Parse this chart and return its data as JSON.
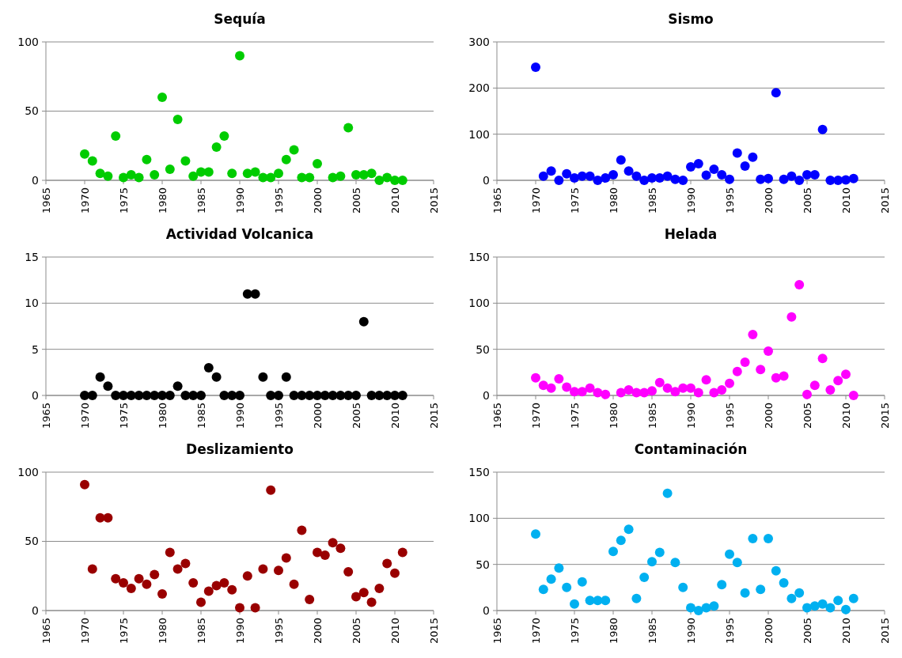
{
  "chart_data": [
    {
      "type": "scatter",
      "title": "Sequía",
      "marker": "circle",
      "grid": "y",
      "xlim": [
        1965,
        2015
      ],
      "xticks": [
        1965,
        1970,
        1975,
        1980,
        1985,
        1990,
        1995,
        2000,
        2005,
        2010,
        2015
      ],
      "ylim": [
        0,
        100
      ],
      "yticks": [
        0,
        50,
        100
      ],
      "series": [
        {
          "color": "#00cc00",
          "x": [
            1970,
            1971,
            1972,
            1973,
            1974,
            1975,
            1976,
            1977,
            1978,
            1979,
            1980,
            1981,
            1982,
            1983,
            1984,
            1985,
            1986,
            1987,
            1988,
            1989,
            1990,
            1991,
            1992,
            1993,
            1994,
            1995,
            1996,
            1997,
            1998,
            1999,
            2000,
            2002,
            2003,
            2004,
            2005,
            2006,
            2007,
            2008,
            2009,
            2010,
            2011
          ],
          "values": [
            19,
            14,
            5,
            3,
            32,
            2,
            4,
            2,
            15,
            4,
            60,
            8,
            44,
            14,
            3,
            6,
            6,
            24,
            32,
            5,
            90,
            5,
            6,
            2,
            2,
            5,
            15,
            22,
            2,
            2,
            12,
            2,
            3,
            38,
            4,
            4,
            5,
            0,
            2,
            0,
            0
          ]
        }
      ]
    },
    {
      "type": "scatter",
      "title": "Sismo",
      "marker": "circle",
      "grid": "y",
      "xlim": [
        1965,
        2015
      ],
      "xticks": [
        1965,
        1970,
        1975,
        1980,
        1985,
        1990,
        1995,
        2000,
        2005,
        2010,
        2015
      ],
      "ylim": [
        0,
        300
      ],
      "yticks": [
        0,
        100,
        200,
        300
      ],
      "series": [
        {
          "color": "#0000ff",
          "x": [
            1970,
            1971,
            1972,
            1973,
            1974,
            1975,
            1976,
            1977,
            1978,
            1979,
            1980,
            1981,
            1982,
            1983,
            1984,
            1985,
            1986,
            1987,
            1988,
            1989,
            1990,
            1991,
            1992,
            1993,
            1994,
            1995,
            1996,
            1997,
            1998,
            1999,
            2000,
            2001,
            2002,
            2003,
            2004,
            2005,
            2006,
            2007,
            2008,
            2009,
            2010,
            2011
          ],
          "values": [
            245,
            9,
            20,
            0,
            14,
            5,
            9,
            9,
            0,
            5,
            12,
            44,
            20,
            9,
            0,
            5,
            5,
            9,
            2,
            0,
            29,
            36,
            11,
            24,
            12,
            2,
            59,
            31,
            50,
            2,
            4,
            190,
            2,
            9,
            0,
            12,
            12,
            110,
            0,
            0,
            1,
            4
          ]
        }
      ]
    },
    {
      "type": "scatter",
      "title": "Actividad Volcanica",
      "marker": "circle",
      "grid": "y",
      "xlim": [
        1965,
        2015
      ],
      "xticks": [
        1965,
        1970,
        1975,
        1980,
        1985,
        1990,
        1995,
        2000,
        2005,
        2010,
        2015
      ],
      "ylim": [
        0,
        15
      ],
      "yticks": [
        0,
        5,
        10,
        15
      ],
      "series": [
        {
          "color": "#000000",
          "x": [
            1970,
            1971,
            1972,
            1973,
            1974,
            1975,
            1976,
            1977,
            1978,
            1979,
            1980,
            1981,
            1982,
            1983,
            1984,
            1985,
            1986,
            1987,
            1988,
            1989,
            1990,
            1991,
            1992,
            1993,
            1994,
            1995,
            1996,
            1997,
            1998,
            1999,
            2000,
            2001,
            2002,
            2003,
            2004,
            2005,
            2006,
            2007,
            2008,
            2009,
            2010,
            2011
          ],
          "values": [
            0,
            0,
            2,
            1,
            0,
            0,
            0,
            0,
            0,
            0,
            0,
            0,
            1,
            0,
            0,
            0,
            3,
            2,
            0,
            0,
            0,
            11,
            11,
            2,
            0,
            0,
            2,
            0,
            0,
            0,
            0,
            0,
            0,
            0,
            0,
            0,
            8,
            0,
            0,
            0,
            0,
            0
          ]
        }
      ]
    },
    {
      "type": "scatter",
      "title": "Helada",
      "marker": "circle",
      "grid": "y",
      "xlim": [
        1965,
        2015
      ],
      "xticks": [
        1965,
        1970,
        1975,
        1980,
        1985,
        1990,
        1995,
        2000,
        2005,
        2010,
        2015
      ],
      "ylim": [
        0,
        150
      ],
      "yticks": [
        0,
        50,
        100,
        150
      ],
      "series": [
        {
          "color": "#ff00ff",
          "x": [
            1970,
            1971,
            1972,
            1973,
            1974,
            1975,
            1976,
            1977,
            1978,
            1979,
            1981,
            1982,
            1983,
            1984,
            1985,
            1986,
            1987,
            1988,
            1989,
            1990,
            1991,
            1992,
            1993,
            1994,
            1995,
            1996,
            1997,
            1998,
            1999,
            2000,
            2001,
            2002,
            2003,
            2004,
            2005,
            2006,
            2007,
            2008,
            2009,
            2010,
            2011
          ],
          "values": [
            19,
            11,
            8,
            18,
            9,
            4,
            4,
            8,
            3,
            1,
            3,
            6,
            3,
            3,
            5,
            14,
            8,
            4,
            8,
            8,
            3,
            17,
            3,
            6,
            13,
            26,
            36,
            66,
            28,
            48,
            19,
            21,
            85,
            120,
            1,
            11,
            40,
            6,
            16,
            23,
            0
          ]
        }
      ]
    },
    {
      "type": "scatter",
      "title": "Deslizamiento",
      "marker": "circle",
      "grid": "y",
      "xlim": [
        1965,
        2015
      ],
      "xticks": [
        1965,
        1970,
        1975,
        1980,
        1985,
        1990,
        1995,
        2000,
        2005,
        2010,
        2015
      ],
      "ylim": [
        0,
        100
      ],
      "yticks": [
        0,
        50,
        100
      ],
      "series": [
        {
          "color": "#990000",
          "x": [
            1970,
            1971,
            1972,
            1973,
            1974,
            1975,
            1976,
            1977,
            1978,
            1979,
            1980,
            1981,
            1982,
            1983,
            1984,
            1985,
            1986,
            1987,
            1988,
            1989,
            1990,
            1991,
            1992,
            1993,
            1994,
            1995,
            1996,
            1997,
            1998,
            1999,
            2000,
            2001,
            2002,
            2003,
            2004,
            2005,
            2006,
            2007,
            2008,
            2009,
            2010,
            2011
          ],
          "values": [
            91,
            30,
            67,
            67,
            23,
            20,
            16,
            23,
            19,
            26,
            12,
            42,
            30,
            34,
            20,
            6,
            14,
            18,
            20,
            15,
            2,
            25,
            2,
            30,
            87,
            29,
            38,
            19,
            58,
            8,
            42,
            40,
            49,
            45,
            28,
            10,
            13,
            6,
            16,
            34,
            27,
            42
          ]
        }
      ]
    },
    {
      "type": "scatter",
      "title": "Contaminación",
      "marker": "circle",
      "grid": "y",
      "xlim": [
        1965,
        2015
      ],
      "xticks": [
        1965,
        1970,
        1975,
        1980,
        1985,
        1990,
        1995,
        2000,
        2005,
        2010,
        2015
      ],
      "ylim": [
        0,
        150
      ],
      "yticks": [
        0,
        50,
        100,
        150
      ],
      "series": [
        {
          "color": "#00b0f0",
          "x": [
            1970,
            1971,
            1972,
            1973,
            1974,
            1975,
            1976,
            1977,
            1978,
            1979,
            1980,
            1981,
            1982,
            1983,
            1984,
            1985,
            1986,
            1987,
            1988,
            1989,
            1990,
            1991,
            1992,
            1993,
            1994,
            1995,
            1996,
            1997,
            1998,
            1999,
            2000,
            2001,
            2002,
            2003,
            2004,
            2005,
            2006,
            2007,
            2008,
            2009,
            2010,
            2011
          ],
          "values": [
            83,
            23,
            34,
            46,
            25,
            7,
            31,
            11,
            11,
            11,
            64,
            76,
            88,
            13,
            36,
            53,
            63,
            127,
            52,
            25,
            3,
            0,
            3,
            5,
            28,
            61,
            52,
            19,
            78,
            23,
            78,
            43,
            30,
            13,
            19,
            3,
            5,
            7,
            3,
            11,
            1,
            13
          ]
        }
      ]
    }
  ]
}
